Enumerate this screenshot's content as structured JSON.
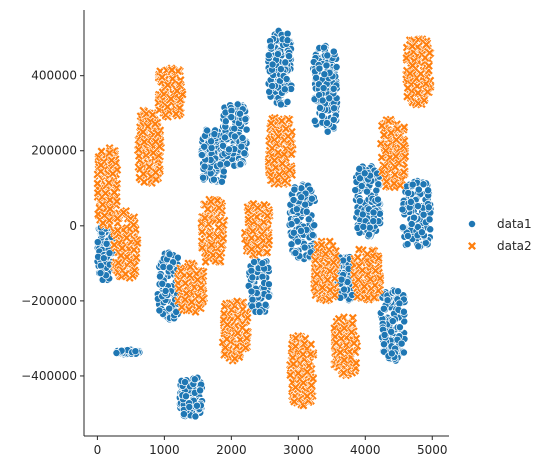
{
  "chart_data": {
    "type": "scatter",
    "xlim": [
      -200,
      5250
    ],
    "ylim": [
      -560000,
      575000
    ],
    "x_ticks": [
      0,
      1000,
      2000,
      3000,
      4000,
      5000
    ],
    "y_ticks": [
      -400000,
      -200000,
      0,
      200000,
      400000
    ],
    "legend": {
      "placement": "right",
      "entries": [
        "data1",
        "data2"
      ]
    },
    "grid": false,
    "series": [
      {
        "name": "data1",
        "marker": "circle",
        "color": "#1f77b4",
        "clusters": [
          {
            "x": [
              0,
              230
            ],
            "y": [
              -145000,
              10000
            ]
          },
          {
            "x": [
              280,
              630
            ],
            "y": [
              -342000,
              -330000
            ]
          },
          {
            "x": [
              900,
              1230
            ],
            "y": [
              -250000,
              -70000
            ]
          },
          {
            "x": [
              1230,
              1570
            ],
            "y": [
              -510000,
              -400000
            ]
          },
          {
            "x": [
              1550,
              1900
            ],
            "y": [
              110000,
              260000
            ]
          },
          {
            "x": [
              1870,
              2230
            ],
            "y": [
              160000,
              330000
            ]
          },
          {
            "x": [
              2250,
              2580
            ],
            "y": [
              -230000,
              -90000
            ]
          },
          {
            "x": [
              2550,
              2900
            ],
            "y": [
              320000,
              520000
            ]
          },
          {
            "x": [
              2870,
              3250
            ],
            "y": [
              -90000,
              110000
            ]
          },
          {
            "x": [
              3220,
              3580
            ],
            "y": [
              250000,
              480000
            ]
          },
          {
            "x": [
              3530,
              3880
            ],
            "y": [
              -200000,
              -80000
            ]
          },
          {
            "x": [
              3850,
              4230
            ],
            "y": [
              -30000,
              160000
            ]
          },
          {
            "x": [
              4230,
              4600
            ],
            "y": [
              -360000,
              -170000
            ]
          },
          {
            "x": [
              4550,
              4980
            ],
            "y": [
              -60000,
              120000
            ]
          }
        ]
      },
      {
        "name": "data2",
        "marker": "x",
        "color": "#ff7f0e",
        "clusters": [
          {
            "x": [
              0,
              300
            ],
            "y": [
              0,
              210000
            ]
          },
          {
            "x": [
              250,
              600
            ],
            "y": [
              -140000,
              40000
            ]
          },
          {
            "x": [
              600,
              950
            ],
            "y": [
              110000,
              310000
            ]
          },
          {
            "x": [
              900,
              1280
            ],
            "y": [
              290000,
              420000
            ]
          },
          {
            "x": [
              1200,
              1600
            ],
            "y": [
              -230000,
              -100000
            ]
          },
          {
            "x": [
              1550,
              1900
            ],
            "y": [
              -100000,
              70000
            ]
          },
          {
            "x": [
              1870,
              2250
            ],
            "y": [
              -360000,
              -200000
            ]
          },
          {
            "x": [
              2200,
              2580
            ],
            "y": [
              -80000,
              60000
            ]
          },
          {
            "x": [
              2550,
              2920
            ],
            "y": [
              110000,
              290000
            ]
          },
          {
            "x": [
              2870,
              3230
            ],
            "y": [
              -480000,
              -290000
            ]
          },
          {
            "x": [
              3230,
              3580
            ],
            "y": [
              -200000,
              -40000
            ]
          },
          {
            "x": [
              3530,
              3880
            ],
            "y": [
              -400000,
              -240000
            ]
          },
          {
            "x": [
              3830,
              4230
            ],
            "y": [
              -200000,
              -60000
            ]
          },
          {
            "x": [
              4230,
              4600
            ],
            "y": [
              100000,
              290000
            ]
          },
          {
            "x": [
              4600,
              4980
            ],
            "y": [
              320000,
              500000
            ]
          }
        ]
      }
    ]
  }
}
